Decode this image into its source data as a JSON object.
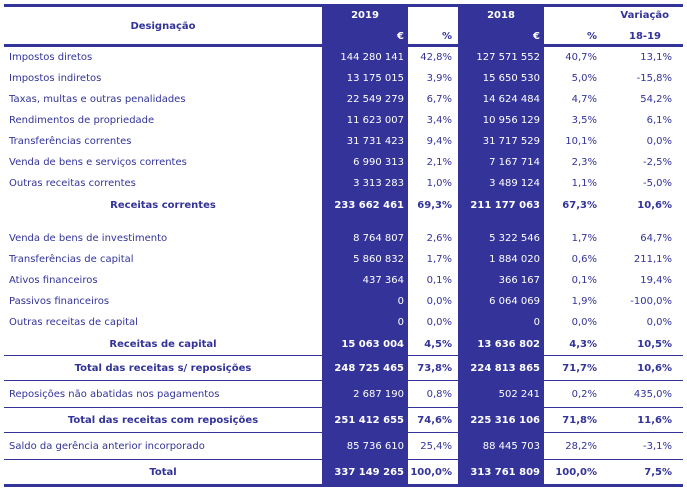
{
  "colors": {
    "navy": "#333399",
    "value_text_on_navy": "#ffffff"
  },
  "table": {
    "header": {
      "designacao": "Designação",
      "y2019": "2019",
      "y2018": "2018",
      "euro": "€",
      "pct": "%",
      "variacao": "Variação",
      "variacao_period": "18-19"
    },
    "rows": [
      {
        "type": "item",
        "label": "Impostos diretos",
        "e2019": "144 280 141",
        "p2019": "42,8%",
        "e2018": "127 571 552",
        "p2018": "40,7%",
        "variation": "13,1%"
      },
      {
        "type": "item",
        "label": "Impostos indiretos",
        "e2019": "13 175 015",
        "p2019": "3,9%",
        "e2018": "15 650 530",
        "p2018": "5,0%",
        "variation": "-15,8%"
      },
      {
        "type": "item",
        "label": "Taxas, multas e outras penalidades",
        "e2019": "22 549 279",
        "p2019": "6,7%",
        "e2018": "14 624 484",
        "p2018": "4,7%",
        "variation": "54,2%"
      },
      {
        "type": "item",
        "label": "Rendimentos de propriedade",
        "e2019": "11 623 007",
        "p2019": "3,4%",
        "e2018": "10 956 129",
        "p2018": "3,5%",
        "variation": "6,1%"
      },
      {
        "type": "item",
        "label": "Transferências correntes",
        "e2019": "31 731 423",
        "p2019": "9,4%",
        "e2018": "31 717 529",
        "p2018": "10,1%",
        "variation": "0,0%"
      },
      {
        "type": "item",
        "label": "Venda de bens e serviços correntes",
        "e2019": "6 990 313",
        "p2019": "2,1%",
        "e2018": "7 167 714",
        "p2018": "2,3%",
        "variation": "-2,5%"
      },
      {
        "type": "item",
        "label": "Outras receitas correntes",
        "e2019": "3 313 283",
        "p2019": "1,0%",
        "e2018": "3 489 124",
        "p2018": "1,1%",
        "variation": "-5,0%"
      },
      {
        "type": "subtotal",
        "label": "Receitas correntes",
        "e2019": "233 662 461",
        "p2019": "69,3%",
        "e2018": "211 177 063",
        "p2018": "67,3%",
        "variation": "10,6%"
      },
      {
        "type": "spacer"
      },
      {
        "type": "item",
        "label": "Venda de bens de investimento",
        "e2019": "8 764 807",
        "p2019": "2,6%",
        "e2018": "5 322 546",
        "p2018": "1,7%",
        "variation": "64,7%"
      },
      {
        "type": "item",
        "label": "Transferências de capital",
        "e2019": "5 860 832",
        "p2019": "1,7%",
        "e2018": "1 884 020",
        "p2018": "0,6%",
        "variation": "211,1%"
      },
      {
        "type": "item",
        "label": "Ativos financeiros",
        "e2019": "437 364",
        "p2019": "0,1%",
        "e2018": "366 167",
        "p2018": "0,1%",
        "variation": "19,4%"
      },
      {
        "type": "item",
        "label": "Passivos financeiros",
        "e2019": "0",
        "p2019": "0,0%",
        "e2018": "6 064 069",
        "p2018": "1,9%",
        "variation": "-100,0%"
      },
      {
        "type": "item",
        "label": "Outras receitas de capital",
        "e2019": "0",
        "p2019": "0,0%",
        "e2018": "0",
        "p2018": "0,0%",
        "variation": "0,0%"
      },
      {
        "type": "subtotal",
        "label": "Receitas de capital",
        "e2019": "15 063 004",
        "p2019": "4,5%",
        "e2018": "13 636 802",
        "p2018": "4,3%",
        "variation": "10,5%"
      },
      {
        "type": "grand",
        "label": "Total das receitas s/ reposições",
        "e2019": "248 725 465",
        "p2019": "73,8%",
        "e2018": "224 813 865",
        "p2018": "71,7%",
        "variation": "10,6%"
      },
      {
        "type": "itemsep",
        "label": "Reposições não abatidas nos pagamentos",
        "e2019": "2 687 190",
        "p2019": "0,8%",
        "e2018": "502 241",
        "p2018": "0,2%",
        "variation": "435,0%"
      },
      {
        "type": "grand",
        "label": "Total das receitas com reposições",
        "e2019": "251 412 655",
        "p2019": "74,6%",
        "e2018": "225 316 106",
        "p2018": "71,8%",
        "variation": "11,6%"
      },
      {
        "type": "itemsep",
        "label": "Saldo da gerência anterior incorporado",
        "e2019": "85 736 610",
        "p2019": "25,4%",
        "e2018": "88 445 703",
        "p2018": "28,2%",
        "variation": "-3,1%"
      },
      {
        "type": "grand",
        "label": "Total",
        "e2019": "337 149 265",
        "p2019": "100,0%",
        "e2018": "313 761 809",
        "p2018": "100,0%",
        "variation": "7,5%"
      }
    ]
  }
}
